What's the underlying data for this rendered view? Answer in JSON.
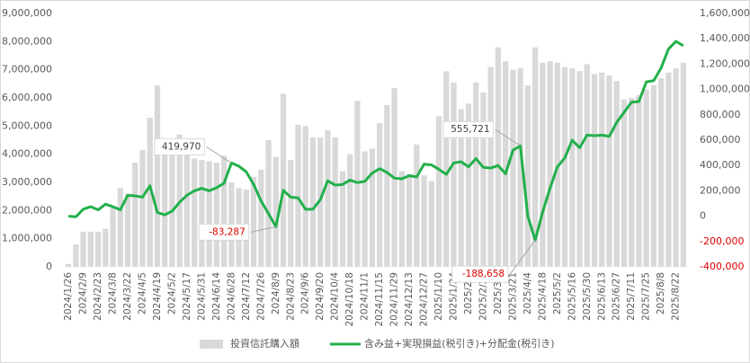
{
  "chart_data": {
    "type": "bar_line",
    "categories": [
      "2024/1/26",
      null,
      "2024/2/9",
      null,
      "2024/2/23",
      null,
      "2024/3/8",
      null,
      "2024/3/22",
      null,
      "2024/4/5",
      null,
      "2024/4/19",
      null,
      "2024/5/2",
      null,
      "2024/5/17",
      null,
      "2024/5/31",
      null,
      "2024/6/14",
      null,
      "2024/6/28",
      null,
      "2024/7/12",
      null,
      "2024/7/26",
      null,
      "2024/8/9",
      null,
      "2024/8/23",
      null,
      "2024/9/6",
      null,
      "2024/9/20",
      null,
      "2024/10/4",
      null,
      "2024/10/18",
      null,
      "2024/11/1",
      null,
      "2024/11/15",
      null,
      "2024/11/29",
      null,
      "2024/12/13",
      null,
      "2024/12/27",
      null,
      "2025/1/10",
      null,
      "2025/1/24",
      null,
      "2025/2/7",
      null,
      "2025/2/21",
      null,
      "2025/3/7",
      null,
      "2025/3/21",
      null,
      "2025/4/4",
      null,
      "2025/4/18",
      null,
      "2025/5/2",
      null,
      "2025/5/16",
      null,
      "2025/5/30",
      null,
      "2025/6/13",
      null,
      "2025/6/27",
      null,
      "2025/7/11",
      null,
      "2025/7/25",
      null,
      "2025/8/8",
      null,
      "2025/8/22",
      null
    ],
    "series": [
      {
        "name": "投資信託購入額",
        "color": "#d9d9d9",
        "kind": "bar",
        "axis": "y",
        "values": [
          100000,
          800000,
          1250000,
          1250000,
          1250000,
          1350000,
          2100000,
          2800000,
          2600000,
          3700000,
          4150000,
          5300000,
          6450000,
          4400000,
          4500000,
          4700000,
          4050000,
          3850000,
          3800000,
          3750000,
          3700000,
          3950000,
          3000000,
          2800000,
          2750000,
          3200000,
          3450000,
          4500000,
          3900000,
          6150000,
          3800000,
          5050000,
          5000000,
          4600000,
          4600000,
          4850000,
          4600000,
          3400000,
          4000000,
          5900000,
          4100000,
          4200000,
          5100000,
          5750000,
          6350000,
          3400000,
          3300000,
          4350000,
          3250000,
          3050000,
          5350000,
          6950000,
          6550000,
          5600000,
          5800000,
          6550000,
          6200000,
          7100000,
          7800000,
          7300000,
          7000000,
          7050000,
          6450000,
          7800000,
          7250000,
          7300000,
          7250000,
          7100000,
          7050000,
          6950000,
          7200000,
          6850000,
          6900000,
          6800000,
          6600000,
          5950000,
          6000000,
          6100000,
          6300000,
          6450000,
          6700000,
          6900000,
          7050000,
          7250000
        ]
      },
      {
        "name": "含み益+実現損益(税引き)+分配金(税引き)",
        "color": "#22b04b",
        "kind": "line",
        "axis": "y2",
        "values": [
          0,
          -5000,
          55000,
          75000,
          50000,
          95000,
          75000,
          50000,
          165000,
          160000,
          150000,
          240000,
          30000,
          10000,
          40000,
          110000,
          165000,
          200000,
          220000,
          200000,
          225000,
          260000,
          419970,
          395000,
          350000,
          250000,
          120000,
          20000,
          -83287,
          205000,
          150000,
          145000,
          55000,
          55000,
          130000,
          280000,
          245000,
          250000,
          285000,
          265000,
          275000,
          340000,
          375000,
          345000,
          300000,
          295000,
          320000,
          310000,
          410000,
          405000,
          370000,
          330000,
          420000,
          430000,
          390000,
          455000,
          385000,
          380000,
          400000,
          335000,
          520000,
          555721,
          0,
          -188658,
          30000,
          220000,
          390000,
          460000,
          600000,
          540000,
          640000,
          635000,
          640000,
          630000,
          740000,
          820000,
          900000,
          905000,
          1060000,
          1070000,
          1170000,
          1320000,
          1380000,
          1345000
        ],
        "value_labels": [
          null,
          null,
          null,
          null,
          null,
          null,
          null,
          null,
          null,
          null,
          null,
          null,
          null,
          null,
          null,
          null,
          null,
          null,
          null,
          null,
          null,
          null,
          "419,970",
          null,
          null,
          null,
          null,
          null,
          "-83,287",
          null,
          null,
          null,
          null,
          null,
          null,
          null,
          null,
          null,
          null,
          null,
          null,
          null,
          null,
          null,
          null,
          null,
          null,
          null,
          null,
          null,
          null,
          null,
          null,
          null,
          null,
          null,
          null,
          null,
          null,
          null,
          null,
          "555,721",
          null,
          "-188,658",
          null,
          null,
          null,
          null,
          null,
          null,
          null,
          null,
          null,
          null,
          null,
          null,
          null,
          null,
          null,
          null,
          null,
          null,
          null,
          null
        ]
      }
    ],
    "ylim": [
      0,
      9000000
    ],
    "yticks": [
      0,
      {
        "value": 1000000,
        "label": "1,000,000"
      },
      {
        "value": 2000000,
        "label": "2,000,000"
      },
      {
        "value": 3000000,
        "label": "3,000,000"
      },
      {
        "value": 4000000,
        "label": "4,000,000"
      },
      {
        "value": 5000000,
        "label": "5,000,000"
      },
      {
        "value": 6000000,
        "label": "6,000,000"
      },
      {
        "value": 7000000,
        "label": "7,000,000"
      },
      {
        "value": 8000000,
        "label": "8,000,000"
      },
      {
        "value": 9000000,
        "label": "9,000,000"
      }
    ],
    "y2lim": [
      -400000,
      1600000
    ],
    "y2ticks": [
      {
        "value": -400000,
        "label": "-400,000"
      },
      {
        "value": -200000,
        "label": "-200,000"
      },
      0,
      {
        "value": 200000,
        "label": "200,000"
      },
      {
        "value": 400000,
        "label": "400,000"
      },
      {
        "value": 600000,
        "label": "600,000"
      },
      {
        "value": 800000,
        "label": "800,000"
      },
      {
        "value": 1000000,
        "label": "1,000,000"
      },
      {
        "value": 1200000,
        "label": "1,200,000"
      },
      {
        "value": 1400000,
        "label": "1,400,000"
      },
      {
        "value": 1600000,
        "label": "1,600,000"
      }
    ],
    "negative_color": "#e00000",
    "grid": false,
    "legend": "bottom"
  }
}
